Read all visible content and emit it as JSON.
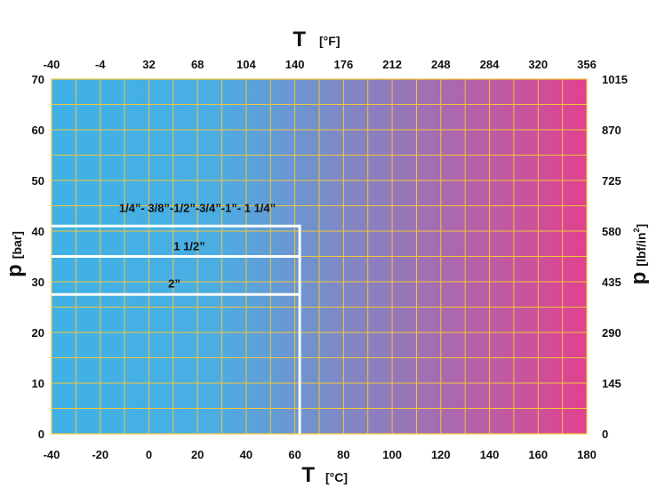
{
  "chart_data": {
    "type": "line",
    "x_axis": {
      "symbol": "T",
      "unit": "[°C]",
      "range": [
        -40,
        180
      ],
      "ticks": [
        "-40",
        "-20",
        "0",
        "20",
        "40",
        "60",
        "80",
        "100",
        "120",
        "140",
        "160",
        "180"
      ]
    },
    "x2_axis": {
      "symbol": "T",
      "unit": "[°F]",
      "ticks": [
        "-40",
        "-4",
        "32",
        "68",
        "104",
        "140",
        "176",
        "212",
        "248",
        "284",
        "320",
        "356"
      ]
    },
    "y_axis": {
      "symbol": "p",
      "unit": "[bar]",
      "range": [
        0,
        70
      ],
      "ticks": [
        "0",
        "10",
        "20",
        "30",
        "40",
        "50",
        "60",
        "70"
      ]
    },
    "y2_axis": {
      "symbol": "p",
      "unit_main": "[lbf/in",
      "unit_sup": "2",
      "unit_close": "]",
      "ticks": [
        "0",
        "145",
        "290",
        "435",
        "580",
        "725",
        "870",
        "1015"
      ]
    },
    "grid": true,
    "gradient": {
      "from": "#3eb1e6",
      "to": "#e2418f"
    },
    "grid_color": "#f2c53a",
    "series_color": "#ffffff",
    "series": [
      {
        "name": "1/4”- 3/8”-1/2”-3/4”-1”- 1 1/4”",
        "x": [
          -40,
          62,
          62
        ],
        "y": [
          41,
          41,
          0
        ]
      },
      {
        "name": "1 1/2”",
        "x": [
          -40,
          62
        ],
        "y": [
          35,
          35
        ]
      },
      {
        "name": "2”",
        "x": [
          -40,
          62
        ],
        "y": [
          27.5,
          27.5
        ]
      }
    ]
  }
}
